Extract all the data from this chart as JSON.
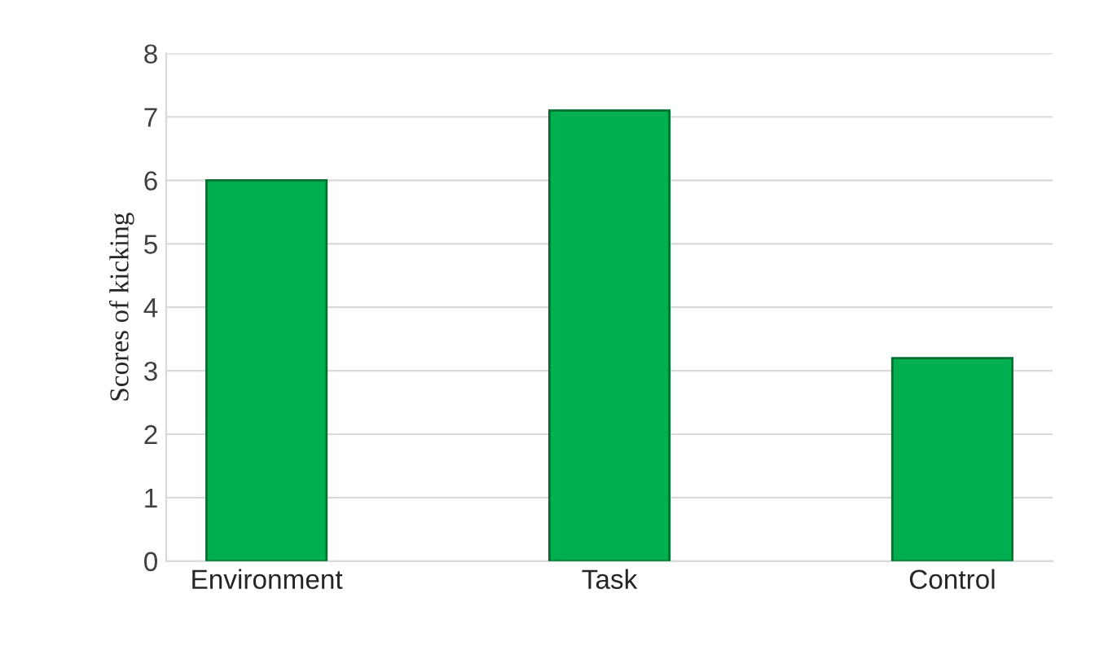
{
  "chart_data": {
    "type": "bar",
    "ylabel": "Scores of kicking",
    "categories": [
      "Environment",
      "Task",
      "Control"
    ],
    "values": [
      6,
      7.1,
      3.2
    ],
    "color": "#00b050",
    "ylim": [
      0,
      8
    ],
    "yticks": [
      0,
      1,
      2,
      3,
      4,
      5,
      6,
      7,
      8
    ],
    "grid": "y"
  }
}
